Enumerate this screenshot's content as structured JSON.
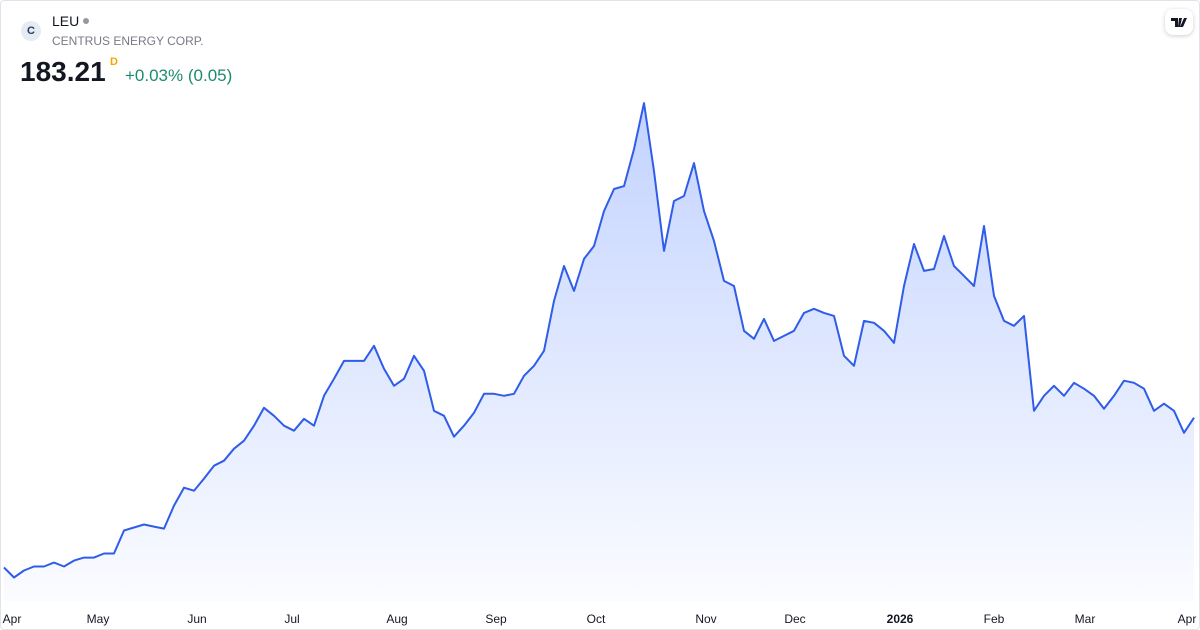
{
  "chart_data": {
    "type": "area",
    "logo_letter": "C",
    "symbol": "LEU",
    "company": "CENTRUS ENERGY CORP.",
    "price": "183.21",
    "interval": "D",
    "change": "+0.03% (0.05)",
    "change_color": "#1e8a6e",
    "series": [
      {
        "name": "LEU",
        "color": "#2f5ce8",
        "values": [
          68.6,
          61.0,
          66.3,
          69.4,
          69.4,
          72.4,
          69.4,
          73.9,
          76.2,
          76.2,
          79.3,
          79.3,
          96.9,
          99.2,
          101.5,
          99.9,
          98.4,
          116.0,
          129.7,
          127.4,
          136.6,
          146.5,
          150.3,
          159.5,
          165.6,
          177.1,
          190.8,
          184.7,
          177.1,
          173.3,
          182.4,
          177.1,
          200.0,
          213.0,
          226.7,
          226.7,
          226.7,
          238.2,
          220.6,
          207.6,
          213.0,
          230.6,
          219.1,
          188.5,
          184.7,
          168.7,
          177.1,
          187.0,
          201.5,
          201.5,
          200.0,
          201.5,
          215.3,
          222.9,
          234.4,
          272.6,
          299.3,
          280.2,
          304.7,
          314.6,
          341.3,
          358.2,
          360.4,
          388.7,
          423.9,
          371.9,
          310.8,
          349.0,
          352.8,
          378.0,
          341.3,
          318.4,
          287.9,
          284.0,
          249.7,
          243.6,
          258.8,
          242.0,
          245.8,
          249.7,
          263.4,
          266.5,
          263.4,
          261.1,
          230.6,
          222.9,
          257.3,
          255.8,
          249.7,
          240.5,
          284.0,
          316.1,
          295.5,
          297.0,
          322.2,
          299.3,
          291.7,
          284.0,
          329.9,
          276.4,
          257.3,
          253.5,
          261.1,
          188.5,
          200.0,
          207.6,
          200.0,
          209.9,
          205.4,
          200.0,
          190.1,
          200.0,
          211.5,
          209.9,
          205.4,
          188.5,
          193.9,
          188.5,
          171.7,
          183.21
        ]
      }
    ],
    "xlim": [
      0,
      119
    ],
    "ylim": [
      43,
      502
    ],
    "xticks": [
      {
        "value": 0.8,
        "label": "Apr"
      },
      {
        "value": 9.4,
        "label": "May"
      },
      {
        "value": 19.3,
        "label": "Jun"
      },
      {
        "value": 28.8,
        "label": "Jul"
      },
      {
        "value": 39.3,
        "label": "Aug"
      },
      {
        "value": 49.2,
        "label": "Sep"
      },
      {
        "value": 59.2,
        "label": "Oct"
      },
      {
        "value": 70.2,
        "label": "Nov"
      },
      {
        "value": 79.1,
        "label": "Dec"
      },
      {
        "value": 89.6,
        "label": "2026",
        "bold": true
      },
      {
        "value": 99,
        "label": "Feb"
      },
      {
        "value": 108.1,
        "label": "Mar"
      },
      {
        "value": 118.4,
        "label": "Apr"
      }
    ]
  }
}
